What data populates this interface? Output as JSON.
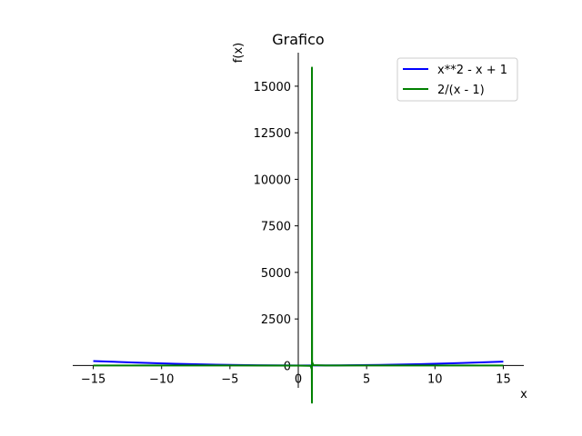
{
  "chart_data": {
    "type": "line",
    "title": "Grafico",
    "xlabel": "x",
    "ylabel": "f(x)",
    "xlim": [
      -16.5,
      16.5
    ],
    "ylim": [
      -1200,
      16800
    ],
    "x_ticks": [
      -15,
      -10,
      -5,
      0,
      5,
      10,
      15
    ],
    "y_ticks": [
      0,
      2500,
      5000,
      7500,
      10000,
      12500,
      15000
    ],
    "legend_position": "top-right",
    "grid": false,
    "series": [
      {
        "name": "x**2 - x + 1",
        "color": "#0000ff",
        "x": [
          -15,
          -12,
          -9,
          -6,
          -3,
          0,
          3,
          6,
          9,
          12,
          15
        ],
        "y": [
          241,
          157,
          91,
          43,
          13,
          1,
          7,
          31,
          73,
          133,
          211
        ]
      },
      {
        "name": "2/(x - 1)",
        "color": "#008000",
        "x": [
          -15,
          -10,
          -5,
          0,
          0.9,
          0.99,
          0.9999,
          0.99999,
          1.000125,
          1.0002,
          1.01,
          1.1,
          2,
          5,
          10,
          15
        ],
        "y": [
          -0.125,
          -0.18,
          -0.33,
          -2,
          -20,
          -200,
          -2000,
          -600,
          16000,
          10000,
          200,
          20,
          2,
          0.5,
          0.22,
          0.14
        ]
      }
    ]
  }
}
